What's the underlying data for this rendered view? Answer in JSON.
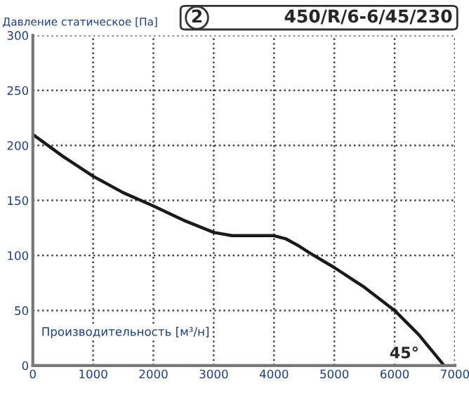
{
  "chart_data": {
    "type": "line",
    "title": "450/R/6-6/45/230",
    "ylabel": "Давление статическое [Па]",
    "xlabel": "Производительность [м³/н]",
    "annotations": [
      "2",
      "45°"
    ],
    "x": [
      0,
      500,
      1000,
      1500,
      2000,
      2500,
      3000,
      3300,
      3600,
      4000,
      4200,
      4400,
      4600,
      5000,
      5500,
      6000,
      6400,
      6820
    ],
    "series": [
      {
        "color": "#1a1a1a",
        "values": [
          210,
          190,
          172,
          157,
          145,
          132,
          121,
          118,
          118,
          118,
          115,
          109,
          102,
          89,
          71,
          50,
          28,
          0
        ]
      }
    ],
    "xlim": [
      0,
      7000
    ],
    "ylim": [
      0,
      300
    ],
    "xticks": [
      0,
      1000,
      2000,
      3000,
      4000,
      5000,
      6000,
      7000
    ],
    "yticks": [
      0,
      50,
      100,
      150,
      200,
      250,
      300
    ],
    "grid": true,
    "line_style": "solid",
    "marker": "none"
  }
}
